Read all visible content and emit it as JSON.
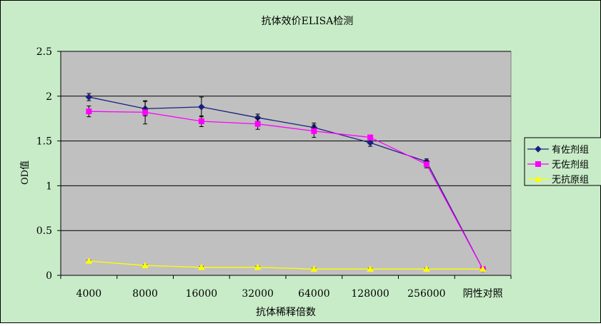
{
  "chart_data": {
    "type": "line",
    "title": "抗体效价ELISA检测",
    "xlabel": "抗体稀释倍数",
    "ylabel": "OD值",
    "categories": [
      "4000",
      "8000",
      "16000",
      "32000",
      "64000",
      "128000",
      "256000",
      "阴性对照"
    ],
    "ylim": [
      0,
      2.5
    ],
    "yticks": [
      "0",
      "0.5",
      "1",
      "1.5",
      "2",
      "2.5"
    ],
    "grid": true,
    "legend_position": "right",
    "series": [
      {
        "name": "有佐剂组",
        "values": [
          1.99,
          1.86,
          1.88,
          1.76,
          1.65,
          1.48,
          1.27,
          0.07
        ],
        "error": [
          0.04,
          0.08,
          0.11,
          0.04,
          0.05,
          0.04,
          0.03,
          0.01
        ],
        "color": "#1a2080",
        "marker": "diamond"
      },
      {
        "name": "无佐剂组",
        "values": [
          1.83,
          1.82,
          1.72,
          1.69,
          1.61,
          1.54,
          1.24,
          0.07
        ],
        "error": [
          0.06,
          0.13,
          0.06,
          0.06,
          0.07,
          0.02,
          0.04,
          0.01
        ],
        "color": "#ff00ff",
        "marker": "square"
      },
      {
        "name": "无抗原组",
        "values": [
          0.16,
          0.11,
          0.09,
          0.09,
          0.07,
          0.07,
          0.07,
          0.07
        ],
        "error": [
          0.01,
          0.01,
          0.01,
          0.01,
          0.01,
          0.01,
          0.01,
          0.01
        ],
        "color": "#ffff00",
        "marker": "triangle"
      }
    ],
    "colors": {
      "chart_area": "#c8ecc8",
      "plot_area": "#c0c0c0",
      "gridline": "#000000",
      "text": "#000000"
    }
  }
}
